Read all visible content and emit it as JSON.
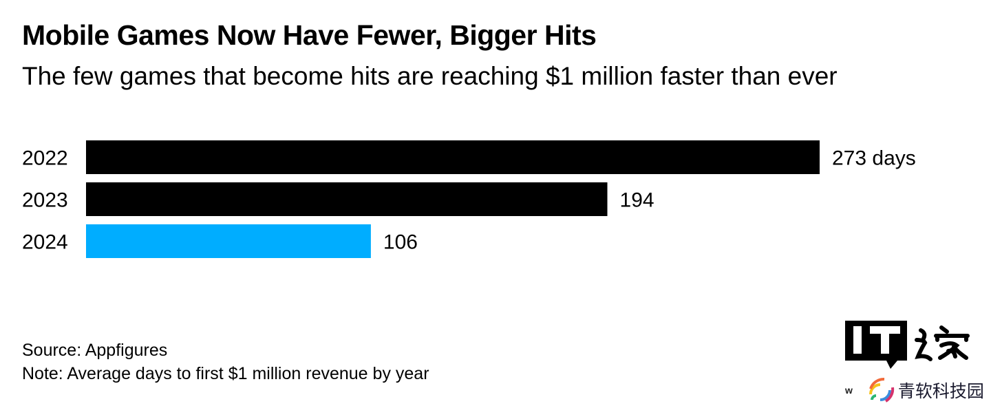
{
  "title": "Mobile Games Now Have Fewer, Bigger Hits",
  "subtitle": "The few games that become hits are reaching $1 million faster than ever",
  "source": "Source: Appfigures",
  "note": "Note: Average days to first $1 million revenue by year",
  "watermark": {
    "logo_text": "IT之家",
    "small_text": "w",
    "brand_text": "青软科技园",
    "icon": "rainbow-signal-icon"
  },
  "colors": {
    "default_bar": "#000000",
    "highlight_bar": "#00adff"
  },
  "chart_data": {
    "type": "bar",
    "orientation": "horizontal",
    "categories": [
      "2022",
      "2023",
      "2024"
    ],
    "values": [
      273,
      194,
      106
    ],
    "value_labels": [
      "273 days",
      "194",
      "106"
    ],
    "highlight": "2024",
    "xlim": [
      0,
      273
    ],
    "grid": false,
    "legend": "none"
  }
}
